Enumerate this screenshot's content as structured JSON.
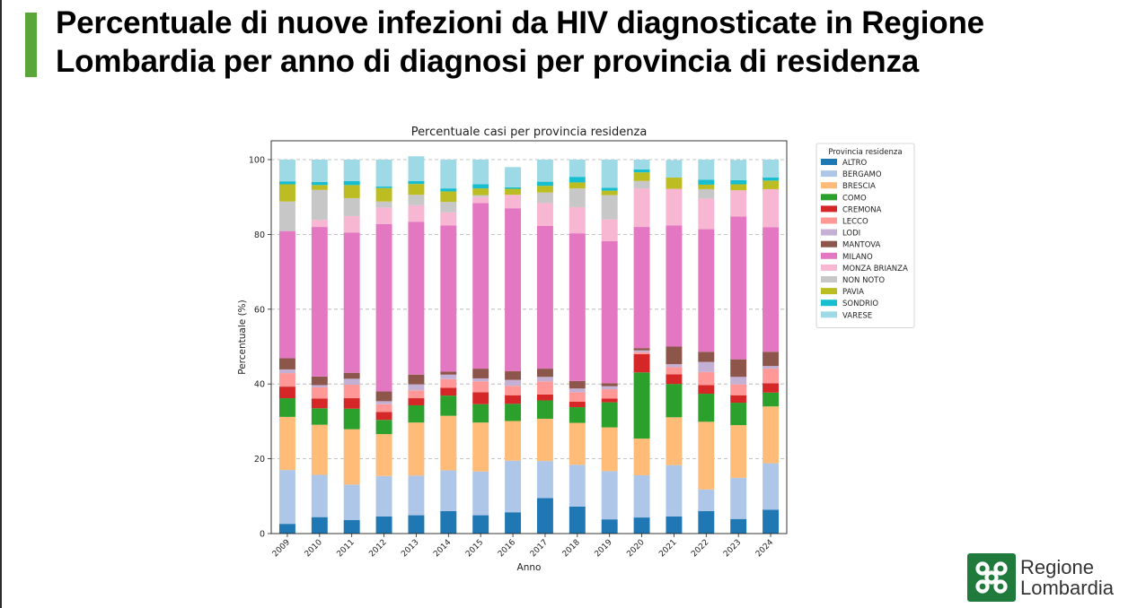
{
  "slide": {
    "title": "Percentuale di nuove infezioni da HIV diagnosticate in Regione Lombardia per anno di diagnosi per provincia di residenza"
  },
  "logo": {
    "line1": "Regione",
    "line2": "Lombardia",
    "icon": "lombardy-rose-icon"
  },
  "chart_data": {
    "type": "bar",
    "stacked": true,
    "title": "Percentuale casi per provincia residenza",
    "xlabel": "Anno",
    "ylabel": "Percentuale (%)",
    "ylim": [
      0,
      100
    ],
    "yticks": [
      0,
      20,
      40,
      60,
      80,
      100
    ],
    "grid": "y-dashed",
    "legend_title": "Provincia residenza",
    "legend_position": "right-outside-top",
    "categories": [
      "2009",
      "2010",
      "2011",
      "2012",
      "2013",
      "2014",
      "2015",
      "2016",
      "2017",
      "2018",
      "2019",
      "2020",
      "2021",
      "2022",
      "2023",
      "2024"
    ],
    "series": [
      {
        "name": "ALTRO",
        "color": "#1f77b4",
        "values": [
          2.6,
          4.4,
          3.6,
          4.6,
          4.9,
          6.0,
          4.9,
          5.7,
          9.5,
          7.2,
          3.8,
          4.3,
          4.6,
          6.0,
          3.9,
          6.4
        ]
      },
      {
        "name": "BERGAMO",
        "color": "#aec7e8",
        "values": [
          14.4,
          11.3,
          9.5,
          10.8,
          10.6,
          10.9,
          11.7,
          13.8,
          9.9,
          11.2,
          12.9,
          11.3,
          13.7,
          5.8,
          11.0,
          12.4
        ]
      },
      {
        "name": "BRESCIA",
        "color": "#ffbb78",
        "values": [
          14.2,
          13.4,
          14.8,
          11.2,
          14.2,
          14.6,
          13.1,
          10.6,
          11.3,
          11.2,
          11.7,
          9.8,
          12.8,
          18.1,
          14.1,
          15.2
        ]
      },
      {
        "name": "COMO",
        "color": "#2ca02c",
        "values": [
          5.0,
          4.4,
          5.5,
          3.8,
          4.6,
          5.4,
          4.9,
          4.6,
          4.9,
          4.2,
          6.7,
          17.7,
          8.9,
          7.5,
          6.0,
          3.7
        ]
      },
      {
        "name": "CREMONA",
        "color": "#d62728",
        "values": [
          3.1,
          2.6,
          2.8,
          2.1,
          1.9,
          2.1,
          3.2,
          2.3,
          1.6,
          1.5,
          1.0,
          4.9,
          2.6,
          2.3,
          2.0,
          2.5
        ]
      },
      {
        "name": "LECCO",
        "color": "#ff9896",
        "values": [
          3.6,
          3.0,
          3.6,
          2.1,
          2.1,
          2.3,
          2.9,
          2.5,
          3.5,
          2.5,
          2.5,
          0.5,
          1.9,
          3.5,
          2.9,
          3.9
        ]
      },
      {
        "name": "LODI",
        "color": "#c5b0d5",
        "values": [
          1.0,
          0.6,
          1.6,
          0.8,
          1.6,
          1.2,
          0.8,
          1.6,
          1.2,
          1.0,
          0.8,
          0.5,
          0.8,
          2.7,
          2.0,
          0.7
        ]
      },
      {
        "name": "MANTOVA",
        "color": "#8c564b",
        "values": [
          3.0,
          2.3,
          1.6,
          2.6,
          2.6,
          0.8,
          2.6,
          2.3,
          2.2,
          2.0,
          0.8,
          0.6,
          4.7,
          2.7,
          4.7,
          3.8
        ]
      },
      {
        "name": "MILANO",
        "color": "#e377c2",
        "values": [
          34.0,
          40.0,
          37.5,
          44.8,
          40.9,
          39.1,
          44.3,
          43.6,
          38.2,
          39.5,
          38.0,
          32.4,
          32.4,
          32.8,
          38.2,
          33.3
        ]
      },
      {
        "name": "MONZA BRIANZA",
        "color": "#f7b6d2",
        "values": [
          0.0,
          1.9,
          4.4,
          4.4,
          4.4,
          3.5,
          1.6,
          3.6,
          6.1,
          7.0,
          5.8,
          10.3,
          9.8,
          8.2,
          7.0,
          10.2
        ]
      },
      {
        "name": "NON NOTO",
        "color": "#c7c7c7",
        "values": [
          7.9,
          8.0,
          4.8,
          1.6,
          2.8,
          2.8,
          0.5,
          0.0,
          2.8,
          5.0,
          6.5,
          2.0,
          0.0,
          2.5,
          0.0,
          0.0
        ]
      },
      {
        "name": "PAVIA",
        "color": "#bcbd22",
        "values": [
          4.6,
          1.3,
          3.5,
          3.6,
          2.9,
          2.8,
          1.8,
          1.6,
          1.8,
          1.6,
          1.2,
          2.3,
          3.0,
          1.2,
          1.6,
          2.3
        ]
      },
      {
        "name": "SONDRIO",
        "color": "#17becf",
        "values": [
          0.8,
          0.8,
          1.1,
          0.4,
          0.8,
          0.8,
          1.1,
          0.4,
          1.1,
          1.5,
          0.8,
          0.8,
          0.0,
          1.3,
          1.1,
          0.8
        ]
      },
      {
        "name": "VARESE",
        "color": "#9edae5",
        "values": [
          5.8,
          6.0,
          5.7,
          7.2,
          6.6,
          7.7,
          6.6,
          5.4,
          5.9,
          4.6,
          7.5,
          2.6,
          4.7,
          5.4,
          5.4,
          4.8
        ]
      }
    ]
  }
}
